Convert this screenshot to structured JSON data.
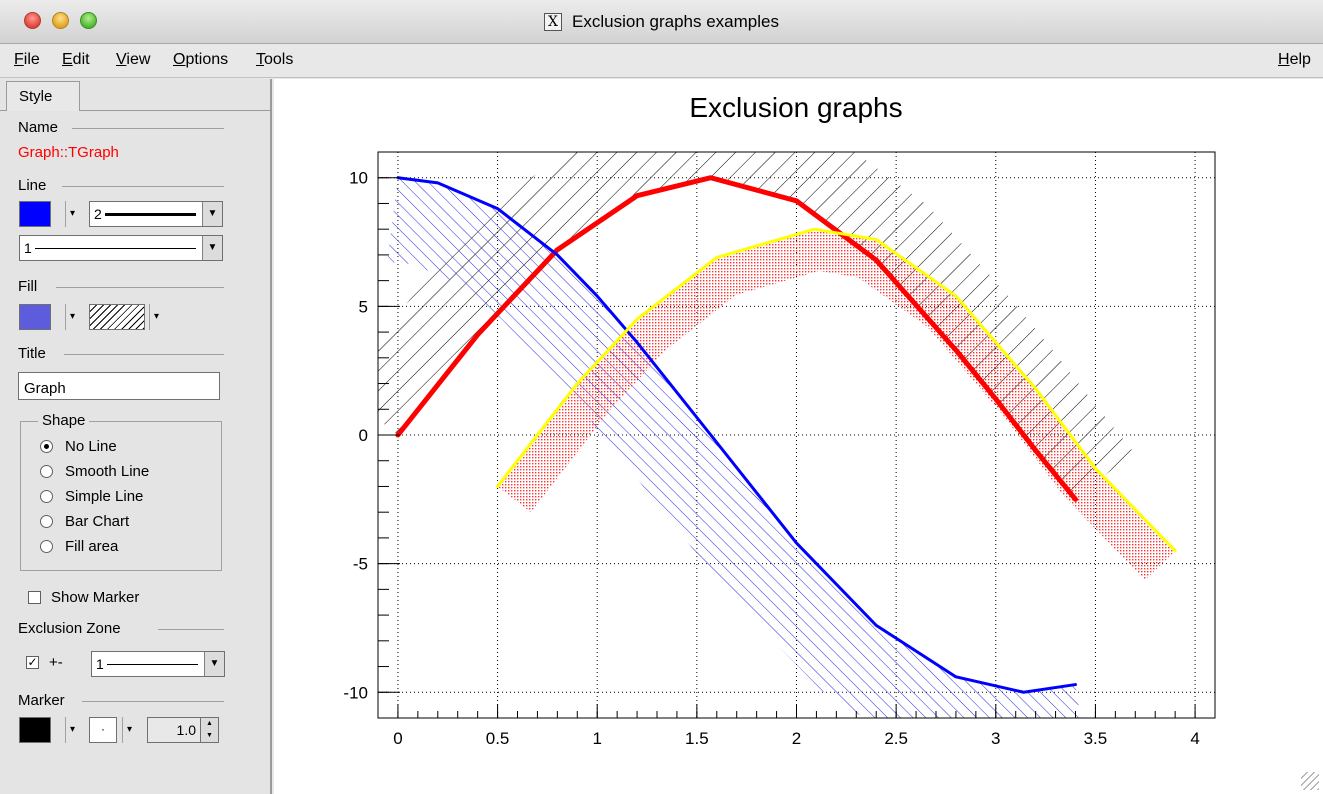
{
  "window": {
    "title": "Exclusion graphs examples"
  },
  "menu": {
    "items": [
      "File",
      "Edit",
      "View",
      "Options",
      "Tools"
    ],
    "help": "Help"
  },
  "editor": {
    "tab": "Style",
    "name_group": "Name",
    "name_value": "Graph::TGraph",
    "line_group": "Line",
    "line_color": "#0000ff",
    "line_width": "2",
    "line_style": "1",
    "fill_group": "Fill",
    "fill_color": "#5c5cdc",
    "title_group": "Title",
    "title_value": "Graph",
    "shape_group": "Shape",
    "shape_options": [
      "No Line",
      "Smooth Line",
      "Simple Line",
      "Bar Chart",
      "Fill area"
    ],
    "shape_selected": "No Line",
    "show_marker": "Show Marker",
    "show_marker_checked": false,
    "exclusion_group": "Exclusion Zone",
    "exclusion_checked": true,
    "exclusion_sign": "+-",
    "exclusion_style": "1",
    "marker_group": "Marker",
    "marker_color": "#000000",
    "marker_size": "1.0"
  },
  "chart_data": {
    "type": "line",
    "title": "Exclusion graphs",
    "xlim": [
      -0.1,
      4.1
    ],
    "ylim": [
      -11,
      11
    ],
    "xticks": [
      "0",
      "0.5",
      "1",
      "1.5",
      "2",
      "2.5",
      "3",
      "3.5",
      "4"
    ],
    "yticks": [
      "-10",
      "-5",
      "0",
      "5",
      "10"
    ],
    "grid": true,
    "series": [
      {
        "color": "#ff0000",
        "hatch": "black diagonal hatch (above)",
        "x": [
          0,
          0.4,
          0.8,
          1.2,
          1.57,
          2.0,
          2.4,
          2.8,
          3.0,
          3.2,
          3.4
        ],
        "y": [
          0,
          3.9,
          7.2,
          9.3,
          10,
          9.1,
          6.8,
          3.3,
          1.4,
          -0.6,
          -2.5
        ]
      },
      {
        "color": "#0000ff",
        "hatch": "blue diagonal hatch (right)",
        "x": [
          0,
          0.2,
          0.5,
          0.8,
          1.0,
          1.2,
          1.57,
          2.0,
          2.4,
          2.8,
          3.14,
          3.4
        ],
        "y": [
          10,
          9.8,
          8.8,
          7.0,
          5.4,
          3.6,
          0,
          -4.2,
          -7.4,
          -9.4,
          -10,
          -9.7
        ]
      },
      {
        "color": "#ffff00",
        "hatch": "red dotted fill (below)",
        "x": [
          0.5,
          0.9,
          1.2,
          1.6,
          2.09,
          2.4,
          2.8,
          3.2,
          3.5,
          3.9
        ],
        "y": [
          -2.0,
          2.0,
          4.5,
          6.9,
          8.0,
          7.6,
          5.4,
          1.8,
          -1.3,
          -4.5
        ]
      }
    ]
  }
}
